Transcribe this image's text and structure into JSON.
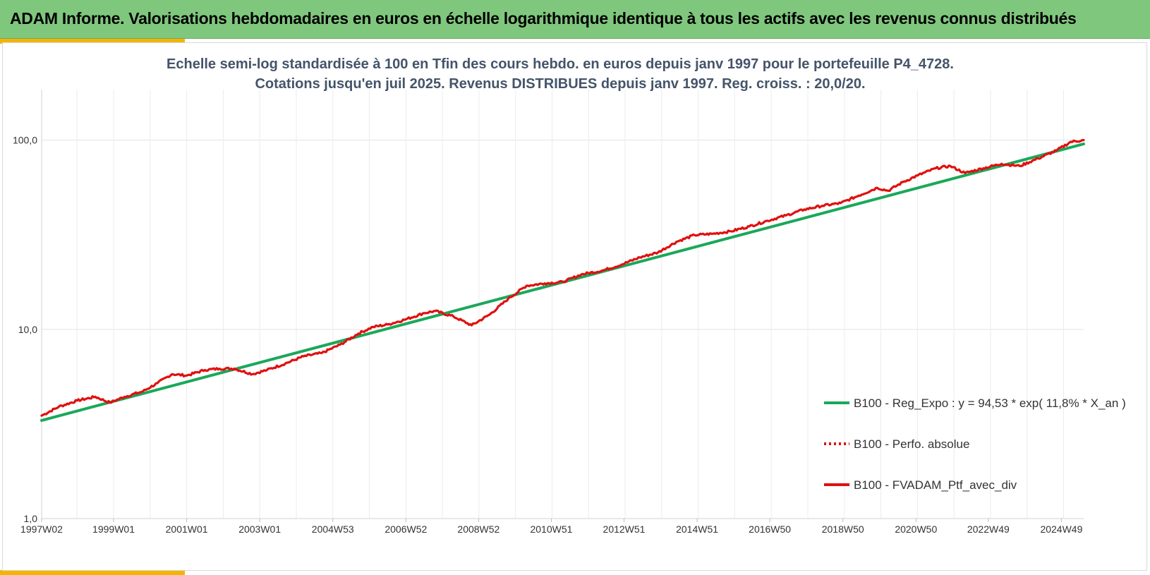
{
  "header": {
    "title": "ADAM Informe. Valorisations hebdomadaires en euros en échelle logarithmique identique à tous les actifs avec les revenus connus distribués"
  },
  "colors": {
    "header_bg": "#80c77e",
    "accent": "#f4b400",
    "regression": "#1aa85a",
    "portfolio": "#e01010",
    "subtitle_text": "#44546a"
  },
  "chart_data": {
    "type": "line",
    "title_lines": [
      "Echelle semi-log standardisée à 100 en Tfin des cours hebdo. en euros depuis janv 1997 pour le portefeuille P4_4728.",
      "Cotations jusqu'en juil 2025. Revenus DISTRIBUES depuis janv 1997. Reg. croiss. : 20,0/20."
    ],
    "y_scale": "log",
    "ylim": [
      1,
      185
    ],
    "y_ticks": [
      {
        "value": 1,
        "label": "1,0"
      },
      {
        "value": 10,
        "label": "10,0"
      },
      {
        "value": 100,
        "label": "100,0"
      }
    ],
    "xlim": [
      1997.03,
      2025.55
    ],
    "x_ticks": [
      {
        "x": 1997.03,
        "label": "1997W02"
      },
      {
        "x": 1999.0,
        "label": "1999W01"
      },
      {
        "x": 2001.0,
        "label": "2001W01"
      },
      {
        "x": 2003.0,
        "label": "2003W01"
      },
      {
        "x": 2005.0,
        "label": "2004W53"
      },
      {
        "x": 2007.0,
        "label": "2006W52"
      },
      {
        "x": 2008.99,
        "label": "2008W52"
      },
      {
        "x": 2010.98,
        "label": "2010W51"
      },
      {
        "x": 2012.97,
        "label": "2012W51"
      },
      {
        "x": 2014.97,
        "label": "2014W51"
      },
      {
        "x": 2016.96,
        "label": "2016W50"
      },
      {
        "x": 2018.96,
        "label": "2018W50"
      },
      {
        "x": 2020.96,
        "label": "2020W50"
      },
      {
        "x": 2022.94,
        "label": "2022W49"
      },
      {
        "x": 2024.94,
        "label": "2024W49"
      }
    ],
    "grid": true,
    "legend_position": "bottom-right",
    "series": [
      {
        "name": "B100 - Reg_Expo : y = 94,53 * exp( 11,8% *  X_an )",
        "color": "#1aa85a",
        "style": "solid",
        "x": [
          1997.03,
          2025.55
        ],
        "y": [
          3.3,
          95.5
        ]
      },
      {
        "name": "B100 - Perfo. absolue",
        "color": "#e01010",
        "style": "dotted",
        "x": [],
        "y": []
      },
      {
        "name": "B100 - FVADAM_Ptf_avec_div",
        "color": "#e01010",
        "style": "solid",
        "x": [
          1997.03,
          1997.5,
          1998.0,
          1998.5,
          1998.9,
          1999.3,
          1999.8,
          2000.2,
          2000.6,
          2001.0,
          2001.5,
          2001.9,
          2002.3,
          2002.8,
          2003.2,
          2003.7,
          2004.2,
          2004.7,
          2005.2,
          2005.7,
          2006.1,
          2006.5,
          2007.0,
          2007.5,
          2007.8,
          2008.3,
          2008.8,
          2009.3,
          2009.8,
          2010.3,
          2010.8,
          2011.3,
          2011.8,
          2012.4,
          2012.9,
          2013.4,
          2013.9,
          2014.4,
          2014.9,
          2015.4,
          2015.9,
          2016.4,
          2016.9,
          2017.4,
          2017.9,
          2018.4,
          2018.9,
          2019.4,
          2019.9,
          2020.2,
          2020.6,
          2021.0,
          2021.5,
          2021.9,
          2022.3,
          2022.8,
          2023.3,
          2023.8,
          2024.3,
          2024.8,
          2025.2,
          2025.55
        ],
        "y": [
          3.5,
          3.9,
          4.2,
          4.4,
          4.1,
          4.4,
          4.7,
          5.2,
          5.8,
          5.7,
          6.1,
          6.2,
          6.2,
          5.8,
          6.1,
          6.6,
          7.2,
          7.5,
          8.3,
          9.5,
          10.3,
          10.6,
          11.3,
          12.2,
          12.5,
          11.7,
          10.5,
          12.0,
          14.5,
          17.0,
          17.5,
          17.8,
          19.5,
          20.5,
          22.0,
          24.0,
          25.5,
          29.0,
          31.5,
          32.0,
          33.0,
          35.0,
          37.5,
          40.0,
          43.0,
          45.0,
          46.5,
          51.0,
          56.0,
          54.0,
          60.0,
          65.0,
          71.0,
          73.0,
          67.0,
          71.0,
          75.0,
          73.0,
          80.0,
          88.0,
          98.0,
          100.0
        ]
      }
    ]
  }
}
